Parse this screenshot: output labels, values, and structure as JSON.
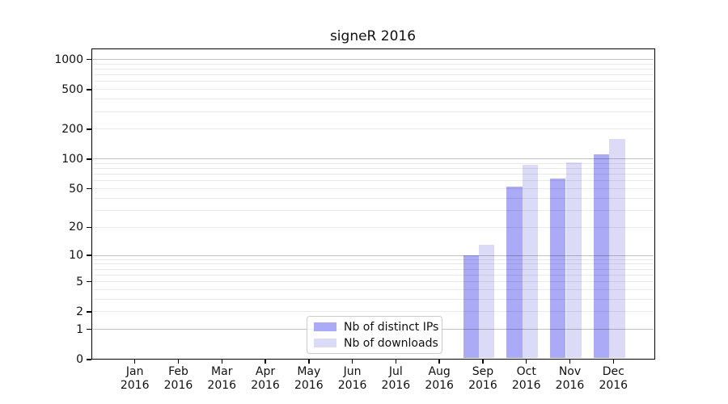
{
  "title": "signeR 2016",
  "chart_data": {
    "type": "bar",
    "title": "signeR 2016",
    "categories": [
      "Jan 2016",
      "Feb 2016",
      "Mar 2016",
      "Apr 2016",
      "May 2016",
      "Jun 2016",
      "Jul 2016",
      "Aug 2016",
      "Sep 2016",
      "Oct 2016",
      "Nov 2016",
      "Dec 2016"
    ],
    "series": [
      {
        "name": "Nb of distinct IPs",
        "color": "#aaaaf6",
        "values": [
          0,
          0,
          0,
          0,
          0,
          0,
          0,
          0,
          10,
          53,
          64,
          112
        ]
      },
      {
        "name": "Nb of downloads",
        "color": "#dbdbf8",
        "values": [
          0,
          0,
          0,
          0,
          0,
          0,
          0,
          0,
          13,
          87,
          92,
          158
        ]
      }
    ],
    "xlabel": "",
    "ylabel": "",
    "yscale": "log1p",
    "ylim": [
      0,
      1280
    ],
    "ytick_labels": [
      0,
      1,
      2,
      5,
      10,
      20,
      50,
      100,
      200,
      500,
      1000
    ],
    "major_gridlines": [
      1,
      10,
      100,
      1000
    ],
    "minor_gridlines": [
      2,
      3,
      4,
      5,
      6,
      7,
      8,
      9,
      20,
      30,
      40,
      50,
      60,
      70,
      80,
      90,
      200,
      300,
      400,
      500,
      600,
      700,
      800,
      900
    ],
    "grid": true,
    "legend_position": "bottom-center"
  }
}
